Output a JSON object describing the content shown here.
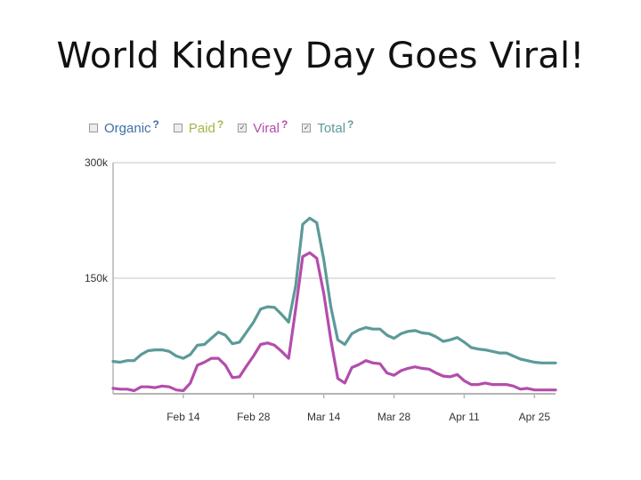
{
  "slide": {
    "title": "World Kidney Day Goes Viral!"
  },
  "legend": [
    {
      "label": "Organic",
      "checked": false,
      "color": "#3f6fa6",
      "help": "?"
    },
    {
      "label": "Paid",
      "checked": false,
      "color": "#9db84a",
      "help": "?"
    },
    {
      "label": "Viral",
      "checked": true,
      "color": "#b34dac",
      "help": "?"
    },
    {
      "label": "Total",
      "checked": true,
      "color": "#5c9a98",
      "help": "?"
    }
  ],
  "chart_data": {
    "type": "line",
    "title": "",
    "xlabel": "",
    "ylabel": "",
    "ylim": [
      0,
      300000
    ],
    "grid": true,
    "legend_position": "top-left",
    "x_ticks": [
      "Feb 14",
      "Feb 28",
      "Mar 14",
      "Mar 28",
      "Apr 11",
      "Apr 25"
    ],
    "y_ticks": [
      "300k",
      "150k"
    ],
    "x": [
      0,
      2,
      4,
      6,
      8,
      10,
      12,
      14,
      16,
      18,
      20,
      22,
      24,
      26,
      28,
      30,
      32,
      34,
      36,
      38,
      40,
      42,
      44,
      46,
      48,
      50,
      52,
      54,
      56,
      58,
      60,
      62,
      64,
      66,
      68,
      70,
      72,
      74,
      76,
      78,
      80,
      82,
      84,
      86,
      88,
      90,
      92,
      94,
      96,
      98,
      100,
      102,
      104,
      106,
      108,
      110,
      112,
      114,
      116,
      118,
      120,
      122,
      124,
      126
    ],
    "x_tick_positions": [
      20,
      40,
      60,
      80,
      100,
      120
    ],
    "series": [
      {
        "name": "Total",
        "color": "#5c9a98",
        "values": [
          42000,
          41000,
          43000,
          43000,
          51000,
          56000,
          57000,
          57000,
          55000,
          49000,
          46000,
          51000,
          63000,
          64000,
          72000,
          80000,
          76000,
          65000,
          67000,
          80000,
          93000,
          110000,
          113000,
          112000,
          103000,
          93000,
          140000,
          220000,
          228000,
          222000,
          174000,
          113000,
          70000,
          64000,
          78000,
          83000,
          86000,
          84000,
          84000,
          76000,
          72000,
          78000,
          81000,
          82000,
          79000,
          78000,
          74000,
          68000,
          70000,
          73000,
          67000,
          60000,
          58000,
          57000,
          55000,
          53000,
          53000,
          49000,
          45000,
          43000,
          41000,
          40000,
          40000,
          40000
        ]
      },
      {
        "name": "Viral",
        "color": "#b34dac",
        "values": [
          7000,
          6000,
          6000,
          4000,
          9000,
          9000,
          8000,
          10000,
          9000,
          5000,
          4000,
          14000,
          37000,
          41000,
          46000,
          46000,
          37000,
          21000,
          22000,
          36000,
          49000,
          64000,
          66000,
          63000,
          55000,
          46000,
          110000,
          178000,
          183000,
          176000,
          130000,
          70000,
          20000,
          14000,
          34000,
          38000,
          43000,
          40000,
          39000,
          27000,
          24000,
          30000,
          33000,
          35000,
          33000,
          32000,
          27000,
          23000,
          22000,
          25000,
          17000,
          12000,
          12000,
          14000,
          12000,
          12000,
          12000,
          10000,
          6000,
          7000,
          5000,
          5000,
          5000,
          5000
        ]
      }
    ]
  }
}
